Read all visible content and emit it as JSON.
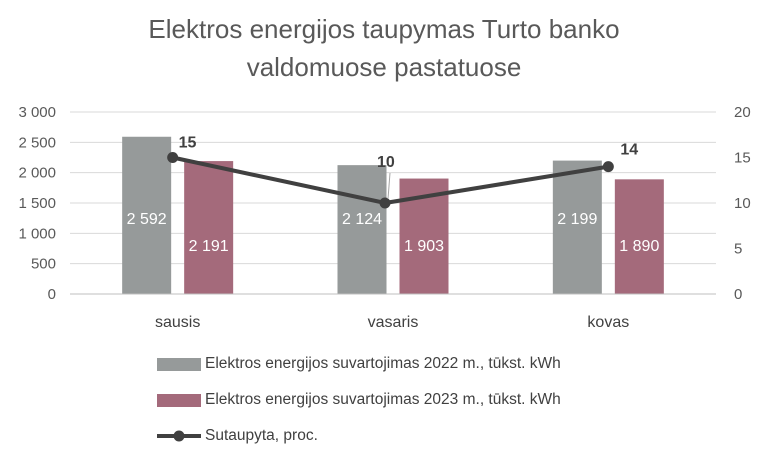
{
  "chart_data": {
    "type": "bar",
    "title_lines": [
      "Elektros energijos taupymas Turto banko",
      "valdomuose pastatuose"
    ],
    "categories": [
      "sausis",
      "vasaris",
      "kovas"
    ],
    "series": [
      {
        "name": "Elektros energijos suvartojimas 2022 m., tūkst. kWh",
        "kind": "bar",
        "axis": "left",
        "values": [
          2592,
          2124,
          2199
        ],
        "labels": [
          "2 592",
          "2 124",
          "2 199"
        ],
        "color": "#969a9a"
      },
      {
        "name": "Elektros energijos suvartojimas 2023 m., tūkst. kWh",
        "kind": "bar",
        "axis": "left",
        "values": [
          2191,
          1903,
          1890
        ],
        "labels": [
          "2 191",
          "1 903",
          "1 890"
        ],
        "color": "#a46a7b"
      },
      {
        "name": "Sutaupyta, proc.",
        "kind": "line",
        "axis": "right",
        "values": [
          15,
          10,
          14
        ],
        "labels": [
          "15",
          "10",
          "14"
        ],
        "color": "#404040"
      }
    ],
    "left_axis": {
      "ylim": [
        0,
        3000
      ],
      "ticks": [
        0,
        500,
        1000,
        1500,
        2000,
        2500,
        3000
      ],
      "tick_labels": [
        "0",
        "500",
        "1 000",
        "1 500",
        "2 000",
        "2 500",
        "3 000"
      ]
    },
    "right_axis": {
      "ylim": [
        0,
        20
      ],
      "ticks": [
        0,
        5,
        10,
        15,
        20
      ],
      "tick_labels": [
        "0",
        "5",
        "10",
        "15",
        "20"
      ]
    },
    "grid": true,
    "legend_position": "bottom"
  }
}
